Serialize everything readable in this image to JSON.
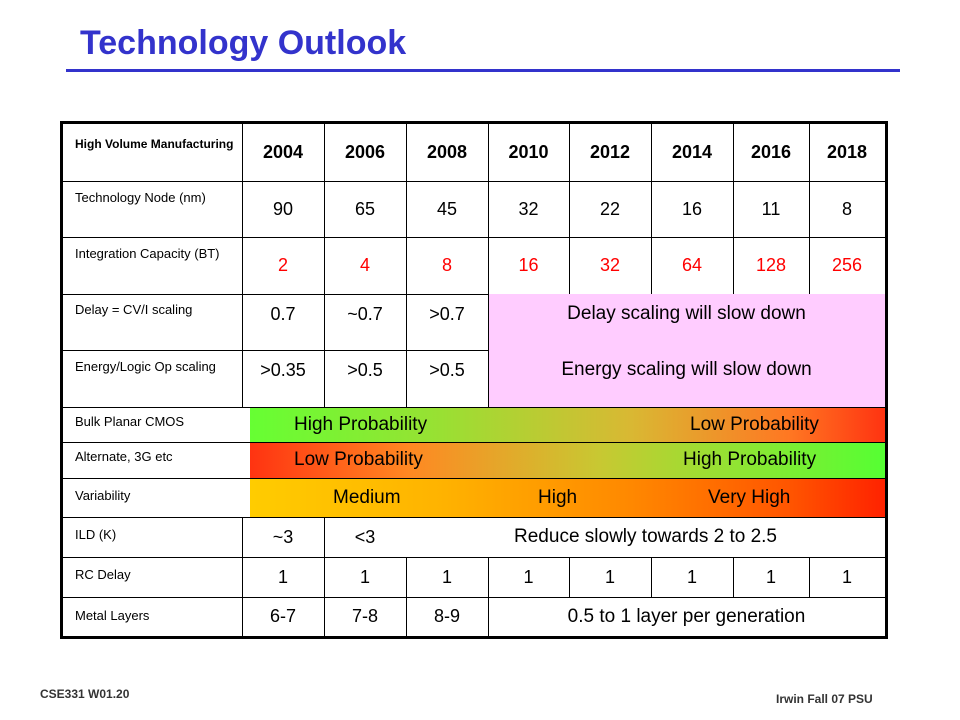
{
  "title": "Technology Outlook",
  "footer": {
    "left": "CSE331  W01.20",
    "right": "Irwin Fall 07  PSU"
  },
  "table": {
    "header_label": "High Volume Manufacturing",
    "years": [
      "2004",
      "2006",
      "2008",
      "2010",
      "2012",
      "2014",
      "2016",
      "2018"
    ],
    "tech_node": {
      "label": "Technology Node (nm)",
      "values": [
        "90",
        "65",
        "45",
        "32",
        "22",
        "16",
        "11",
        "8"
      ]
    },
    "integration": {
      "label": "Integration Capacity (BT)",
      "values": [
        "2",
        "4",
        "8",
        "16",
        "32",
        "64",
        "128",
        "256"
      ],
      "color": "#ff0000"
    },
    "delay": {
      "label": "Delay = CV/I scaling",
      "values": [
        "0.7",
        "~0.7",
        ">0.7"
      ],
      "span": "Delay scaling will slow down"
    },
    "energy": {
      "label": "Energy/Logic Op scaling",
      "values": [
        ">0.35",
        ">0.5",
        ">0.5"
      ],
      "span": "Energy scaling will slow down"
    },
    "bulk": {
      "label": "Bulk Planar CMOS",
      "left": "High Probability",
      "right": "Low Probability"
    },
    "alternate": {
      "label": "Alternate, 3G etc",
      "left": "Low Probability",
      "right": "High Probability"
    },
    "variability": {
      "label": "Variability",
      "a": "Medium",
      "b": "High",
      "c": "Very High"
    },
    "ild": {
      "label": "ILD (K)",
      "values": [
        "~3",
        "<3"
      ],
      "span": "Reduce slowly towards 2 to 2.5"
    },
    "rc": {
      "label": "RC Delay",
      "values": [
        "1",
        "1",
        "1",
        "1",
        "1",
        "1",
        "1",
        "1"
      ]
    },
    "metal": {
      "label": "Metal Layers",
      "values": [
        "6-7",
        "7-8",
        "8-9"
      ],
      "span": "0.5 to 1 layer per generation"
    },
    "colors": {
      "title": "#3333cc",
      "pink": "#ffccff",
      "green": "#66ff33",
      "red": "#ff3311",
      "orange": "#ff8800"
    }
  }
}
